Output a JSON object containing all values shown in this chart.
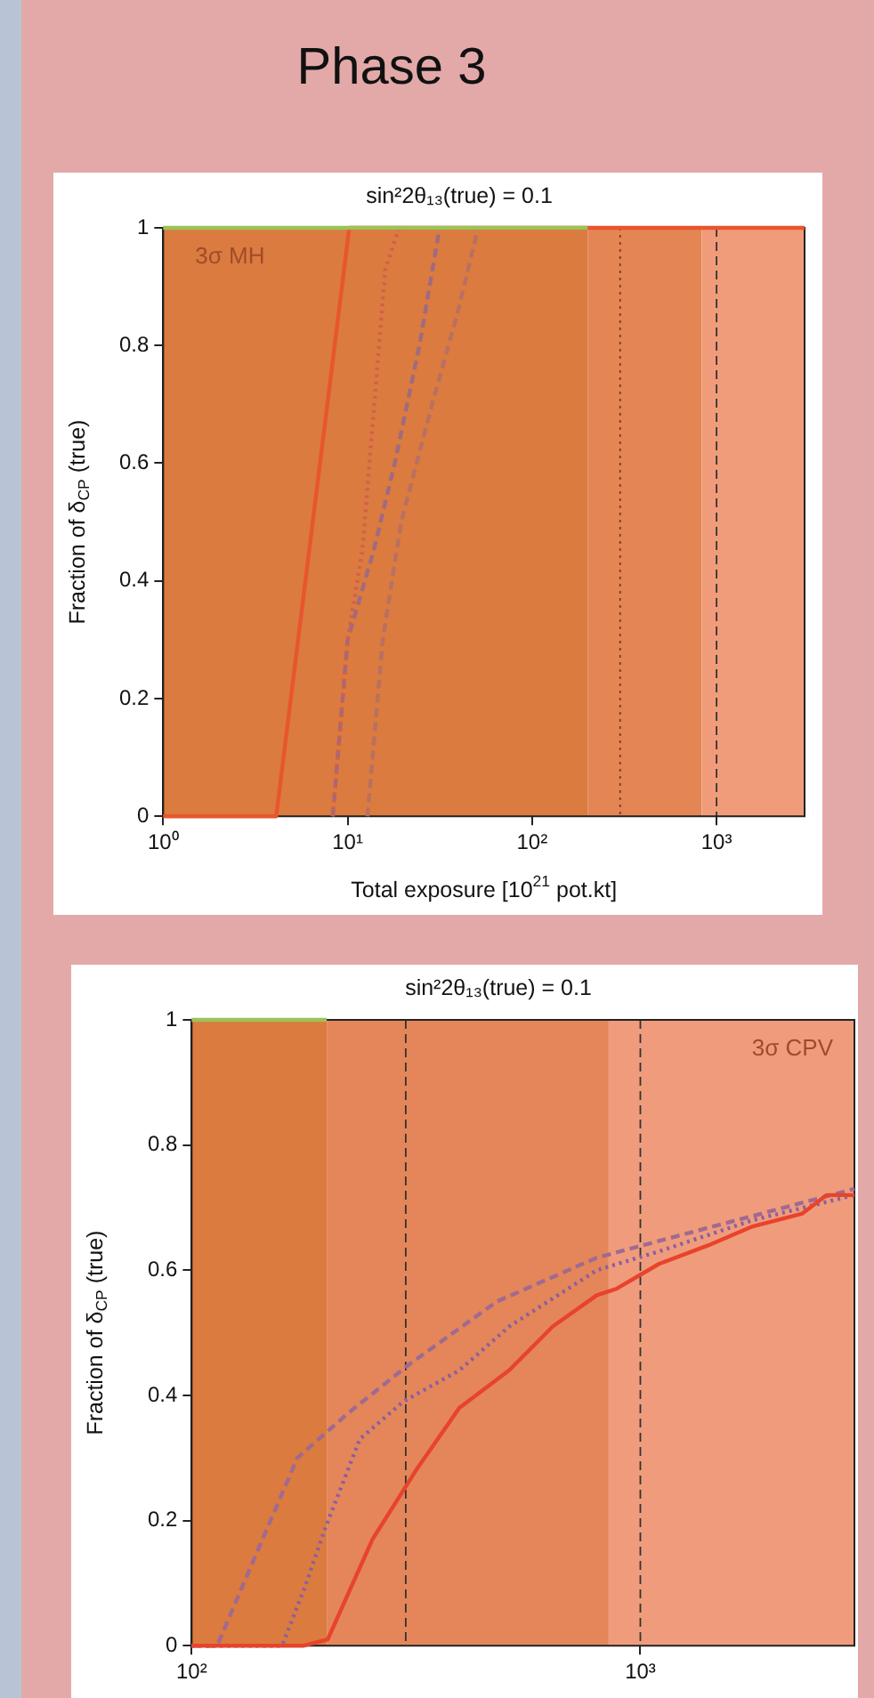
{
  "chart_data": [
    {
      "type": "line",
      "title": "Phase 3",
      "subtitle": "sin²2θ₁₃(true) = 0.1",
      "xlabel": "Total exposure [10$^{21}$ pot.kt]",
      "ylabel": "Fraction of δ$_{CP}$ (true)",
      "log": "x",
      "xlim": [
        1,
        3000
      ],
      "ylim": [
        0,
        1
      ],
      "xticks": [
        {
          "value": 1,
          "label": "10⁰"
        },
        {
          "value": 10,
          "label": "10¹"
        },
        {
          "value": 100,
          "label": "10²"
        },
        {
          "value": 1000,
          "label": "10³"
        }
      ],
      "yticks": [
        0,
        0.2,
        0.4,
        0.6,
        0.8,
        1
      ],
      "grid": false,
      "legend": false,
      "marker": "none",
      "annotations": [
        "3σ MH"
      ],
      "bands": [
        {
          "axis": "x",
          "from": 1,
          "to": 200,
          "color": "#db7b3f"
        },
        {
          "axis": "x",
          "from": 200,
          "to": 830,
          "color": "#e48554"
        },
        {
          "axis": "x",
          "from": 830,
          "to": 3000,
          "color": "#f09c7b"
        }
      ],
      "ref_lines": [
        {
          "axis": "x",
          "value": 300,
          "color": "#7a3a28",
          "line_style": "dotted"
        },
        {
          "axis": "x",
          "value": 1000,
          "color": "#333333",
          "line_style": "dashed"
        }
      ],
      "series": [
        {
          "color": "#9cc25a",
          "line_style": "solid",
          "x": [
            1,
            200
          ],
          "values": [
            1,
            1
          ]
        },
        {
          "color": "#e8552e",
          "line_style": "solid",
          "x": [
            1,
            4.1,
            10.2,
            3000
          ],
          "values": [
            0,
            0,
            1,
            1
          ]
        },
        {
          "color": "#d0604a",
          "line_style": "dotted",
          "x": [
            8.3,
            10,
            12,
            16,
            19
          ],
          "values": [
            0,
            0.3,
            0.45,
            0.93,
            1
          ]
        },
        {
          "color": "#a06a80",
          "line_style": "dashed",
          "x": [
            8.3,
            10,
            13.8,
            18,
            24.5,
            31.5
          ],
          "values": [
            0,
            0.3,
            0.45,
            0.6,
            0.8,
            1
          ]
        },
        {
          "color": "#b87060",
          "line_style": "dashed",
          "x": [
            12.8,
            15.5,
            19.5,
            28.7,
            39,
            51
          ],
          "values": [
            0,
            0.3,
            0.5,
            0.7,
            0.85,
            1
          ]
        }
      ]
    },
    {
      "type": "line",
      "title": "sin²2θ₁₃(true) = 0.1",
      "ylabel": "Fraction of δ$_{CP}$ (true)",
      "log": "x",
      "xlim": [
        100,
        3000
      ],
      "ylim": [
        0,
        1
      ],
      "xticks": [
        {
          "value": 100,
          "label": "10²"
        },
        {
          "value": 1000,
          "label": "10³"
        }
      ],
      "yticks": [
        0,
        0.2,
        0.4,
        0.6,
        0.8,
        1
      ],
      "grid": false,
      "legend": false,
      "marker": "none",
      "annotations": [
        "3σ CPV"
      ],
      "bands": [
        {
          "axis": "x",
          "from": 100,
          "to": 200,
          "color": "#dc7b3f"
        },
        {
          "axis": "x",
          "from": 200,
          "to": 850,
          "color": "#e4865a"
        },
        {
          "axis": "x",
          "from": 850,
          "to": 3000,
          "color": "#f09c7c"
        }
      ],
      "ref_lines": [
        {
          "axis": "x",
          "value": 300,
          "color": "#333333",
          "line_style": "dashed"
        },
        {
          "axis": "x",
          "value": 1000,
          "color": "#333333",
          "line_style": "dashed"
        }
      ],
      "series": [
        {
          "color": "#9cc25a",
          "line_style": "solid",
          "x": [
            100,
            200
          ],
          "values": [
            1,
            1
          ]
        },
        {
          "color": "#e8432b",
          "line_style": "solid",
          "x": [
            100,
            178,
            201,
            253,
            316,
            395,
            510,
            638,
            800,
            883,
            1100,
            1420,
            1780,
            2290,
            2600,
            3000
          ],
          "values": [
            0,
            0,
            0.01,
            0.17,
            0.28,
            0.38,
            0.44,
            0.51,
            0.56,
            0.57,
            0.61,
            0.64,
            0.67,
            0.69,
            0.72,
            0.72
          ]
        },
        {
          "color": "#8a5fa0",
          "line_style": "dotted",
          "x": [
            100,
            159,
            178,
            199,
            237,
            296,
            395,
            510,
            800,
            1100,
            1780,
            3000
          ],
          "values": [
            0,
            0,
            0.09,
            0.19,
            0.33,
            0.39,
            0.44,
            0.51,
            0.6,
            0.63,
            0.68,
            0.72
          ]
        },
        {
          "color": "#a06a90",
          "line_style": "dashed",
          "x": [
            100,
            114,
            138,
            172,
            222,
            306,
            479,
            800,
            1290,
            3000
          ],
          "values": [
            0,
            0,
            0.14,
            0.3,
            0.37,
            0.45,
            0.55,
            0.62,
            0.66,
            0.73
          ]
        }
      ]
    }
  ]
}
